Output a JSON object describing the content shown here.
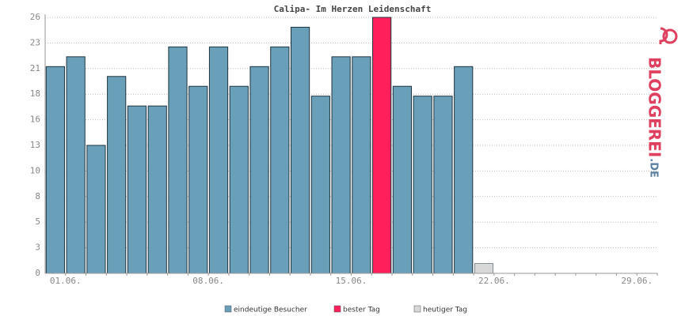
{
  "chart_data": {
    "type": "bar",
    "title": "Calipa- Im Herzen Leidenschaft",
    "categories": [
      "01.06.",
      null,
      null,
      null,
      null,
      null,
      null,
      "08.06.",
      null,
      null,
      null,
      null,
      null,
      null,
      "15.06.",
      null,
      null,
      null,
      null,
      null,
      null,
      "22.06.",
      null,
      null,
      null,
      null,
      null,
      null,
      "29.06.",
      null
    ],
    "series": [
      {
        "name": "eindeutige Besucher",
        "color": "#6a9fb9",
        "values": [
          21,
          22,
          13,
          20,
          17,
          17,
          23,
          19,
          23,
          19,
          21,
          23,
          25,
          18,
          22,
          22,
          null,
          19,
          18,
          18,
          21,
          null,
          null,
          null,
          null,
          null,
          null,
          null,
          null,
          null
        ]
      },
      {
        "name": "bester Tag",
        "color": "#ff1f5a",
        "values": [
          null,
          null,
          null,
          null,
          null,
          null,
          null,
          null,
          null,
          null,
          null,
          null,
          null,
          null,
          null,
          null,
          26,
          null,
          null,
          null,
          null,
          null,
          null,
          null,
          null,
          null,
          null,
          null,
          null,
          null
        ]
      },
      {
        "name": "heutiger Tag",
        "color": "#d8d8d8",
        "values": [
          null,
          null,
          null,
          null,
          null,
          null,
          null,
          null,
          null,
          null,
          null,
          null,
          null,
          null,
          null,
          null,
          null,
          null,
          null,
          null,
          null,
          1,
          null,
          null,
          null,
          null,
          null,
          null,
          null,
          null
        ]
      }
    ],
    "ylim": [
      0,
      26
    ],
    "yticks": [
      0,
      {
        "value": 2.6,
        "label": "3"
      },
      {
        "value": 5.2,
        "label": "5"
      },
      {
        "value": 7.8,
        "label": "8"
      },
      {
        "value": 10.4,
        "label": "10"
      },
      13,
      {
        "value": 15.6,
        "label": "16"
      },
      {
        "value": 18.2,
        "label": "18"
      },
      {
        "value": 20.8,
        "label": "21"
      },
      {
        "value": 23.4,
        "label": "23"
      },
      26
    ],
    "grid": true,
    "logo": "BLOGGEREI",
    "logo_suffix": ".DE"
  }
}
